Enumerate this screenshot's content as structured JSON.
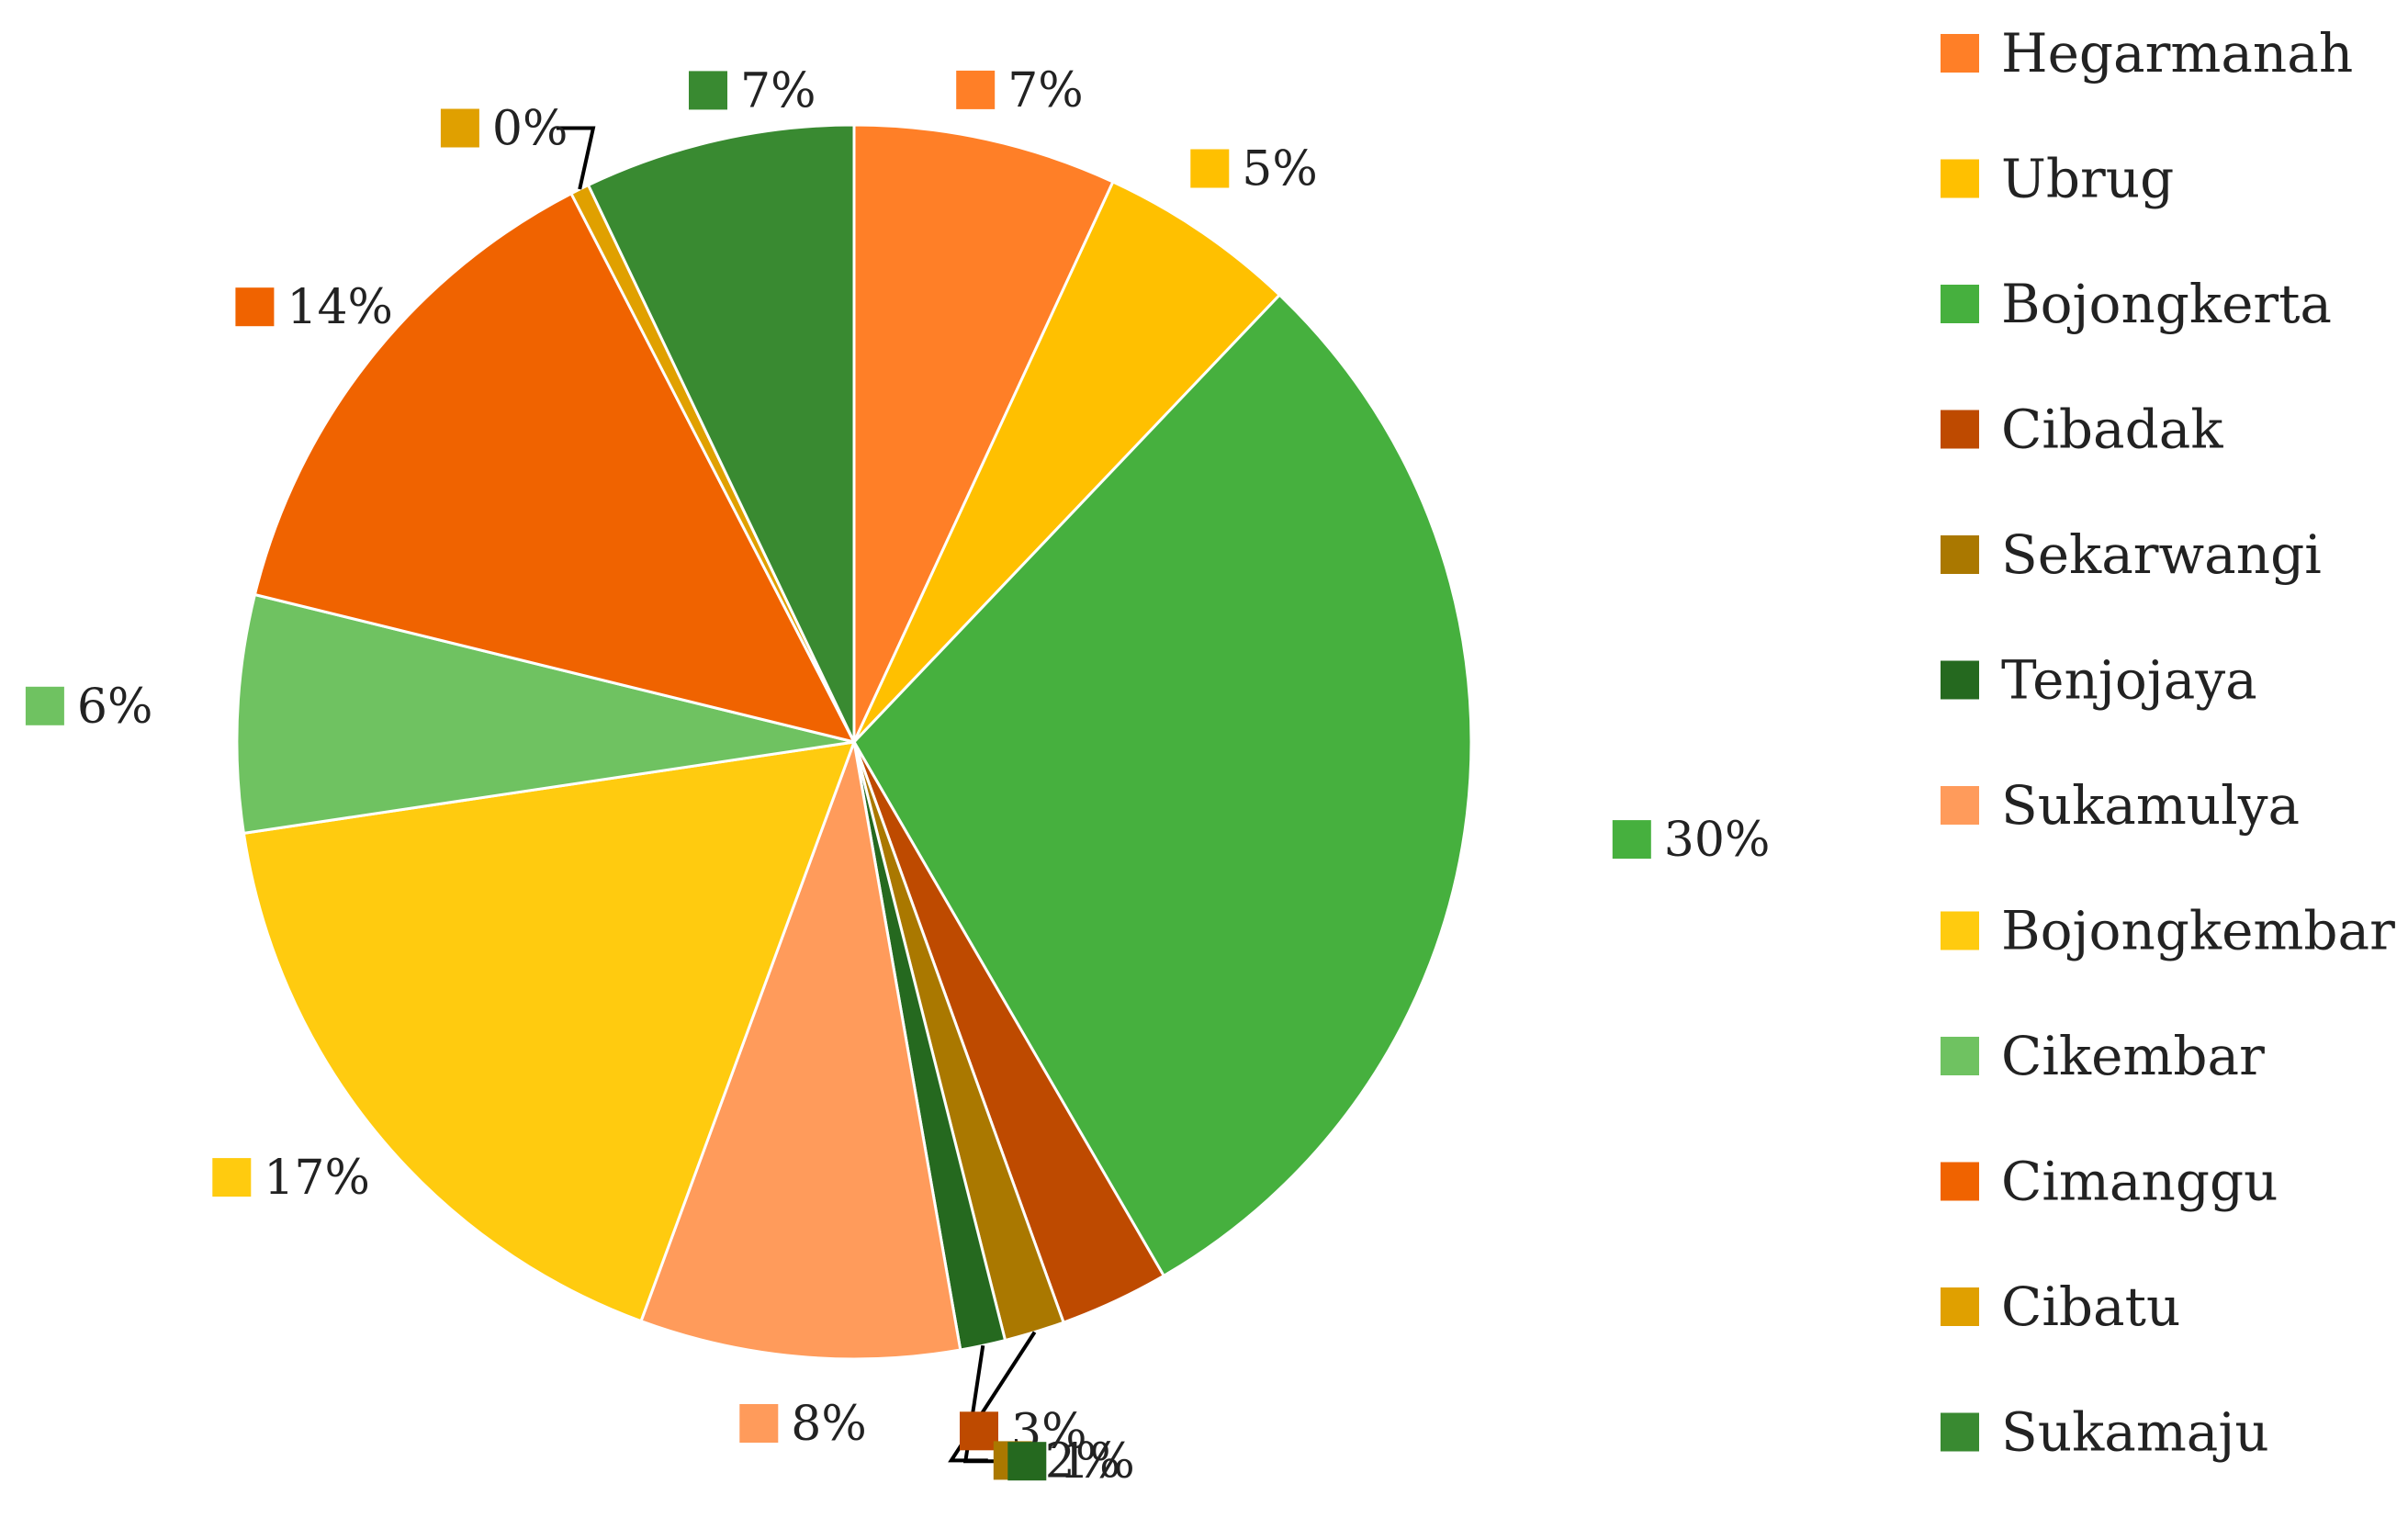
{
  "chart_data": {
    "type": "pie",
    "title": "",
    "legend_position": "right",
    "start": "top",
    "direction": "clockwise",
    "categories": [
      "Hegarmanah",
      "Ubrug",
      "Bojongkerta",
      "Cibadak",
      "Sekarwangi",
      "Tenjojaya",
      "Sukamulya",
      "Bojongkembar",
      "Cikembar",
      "Cimanggu",
      "Cibatu",
      "Sukamaju"
    ],
    "values": [
      7.0,
      5.3,
      30.0,
      2.9,
      1.6,
      1.2,
      8.5,
      17.3,
      6.3,
      13.8,
      0.5,
      7.2
    ],
    "labels": [
      "7%",
      "5%",
      "30%",
      "3%",
      "2%",
      "1%",
      "8%",
      "17%",
      "6%",
      "14%",
      "0%",
      "7%"
    ],
    "colors": [
      "#FF7F27",
      "#FFC000",
      "#46B03E",
      "#BE4A00",
      "#AA7800",
      "#25691F",
      "#FF9B5B",
      "#FFCB0F",
      "#6FC261",
      "#F06300",
      "#E0A000",
      "#398A31"
    ]
  }
}
